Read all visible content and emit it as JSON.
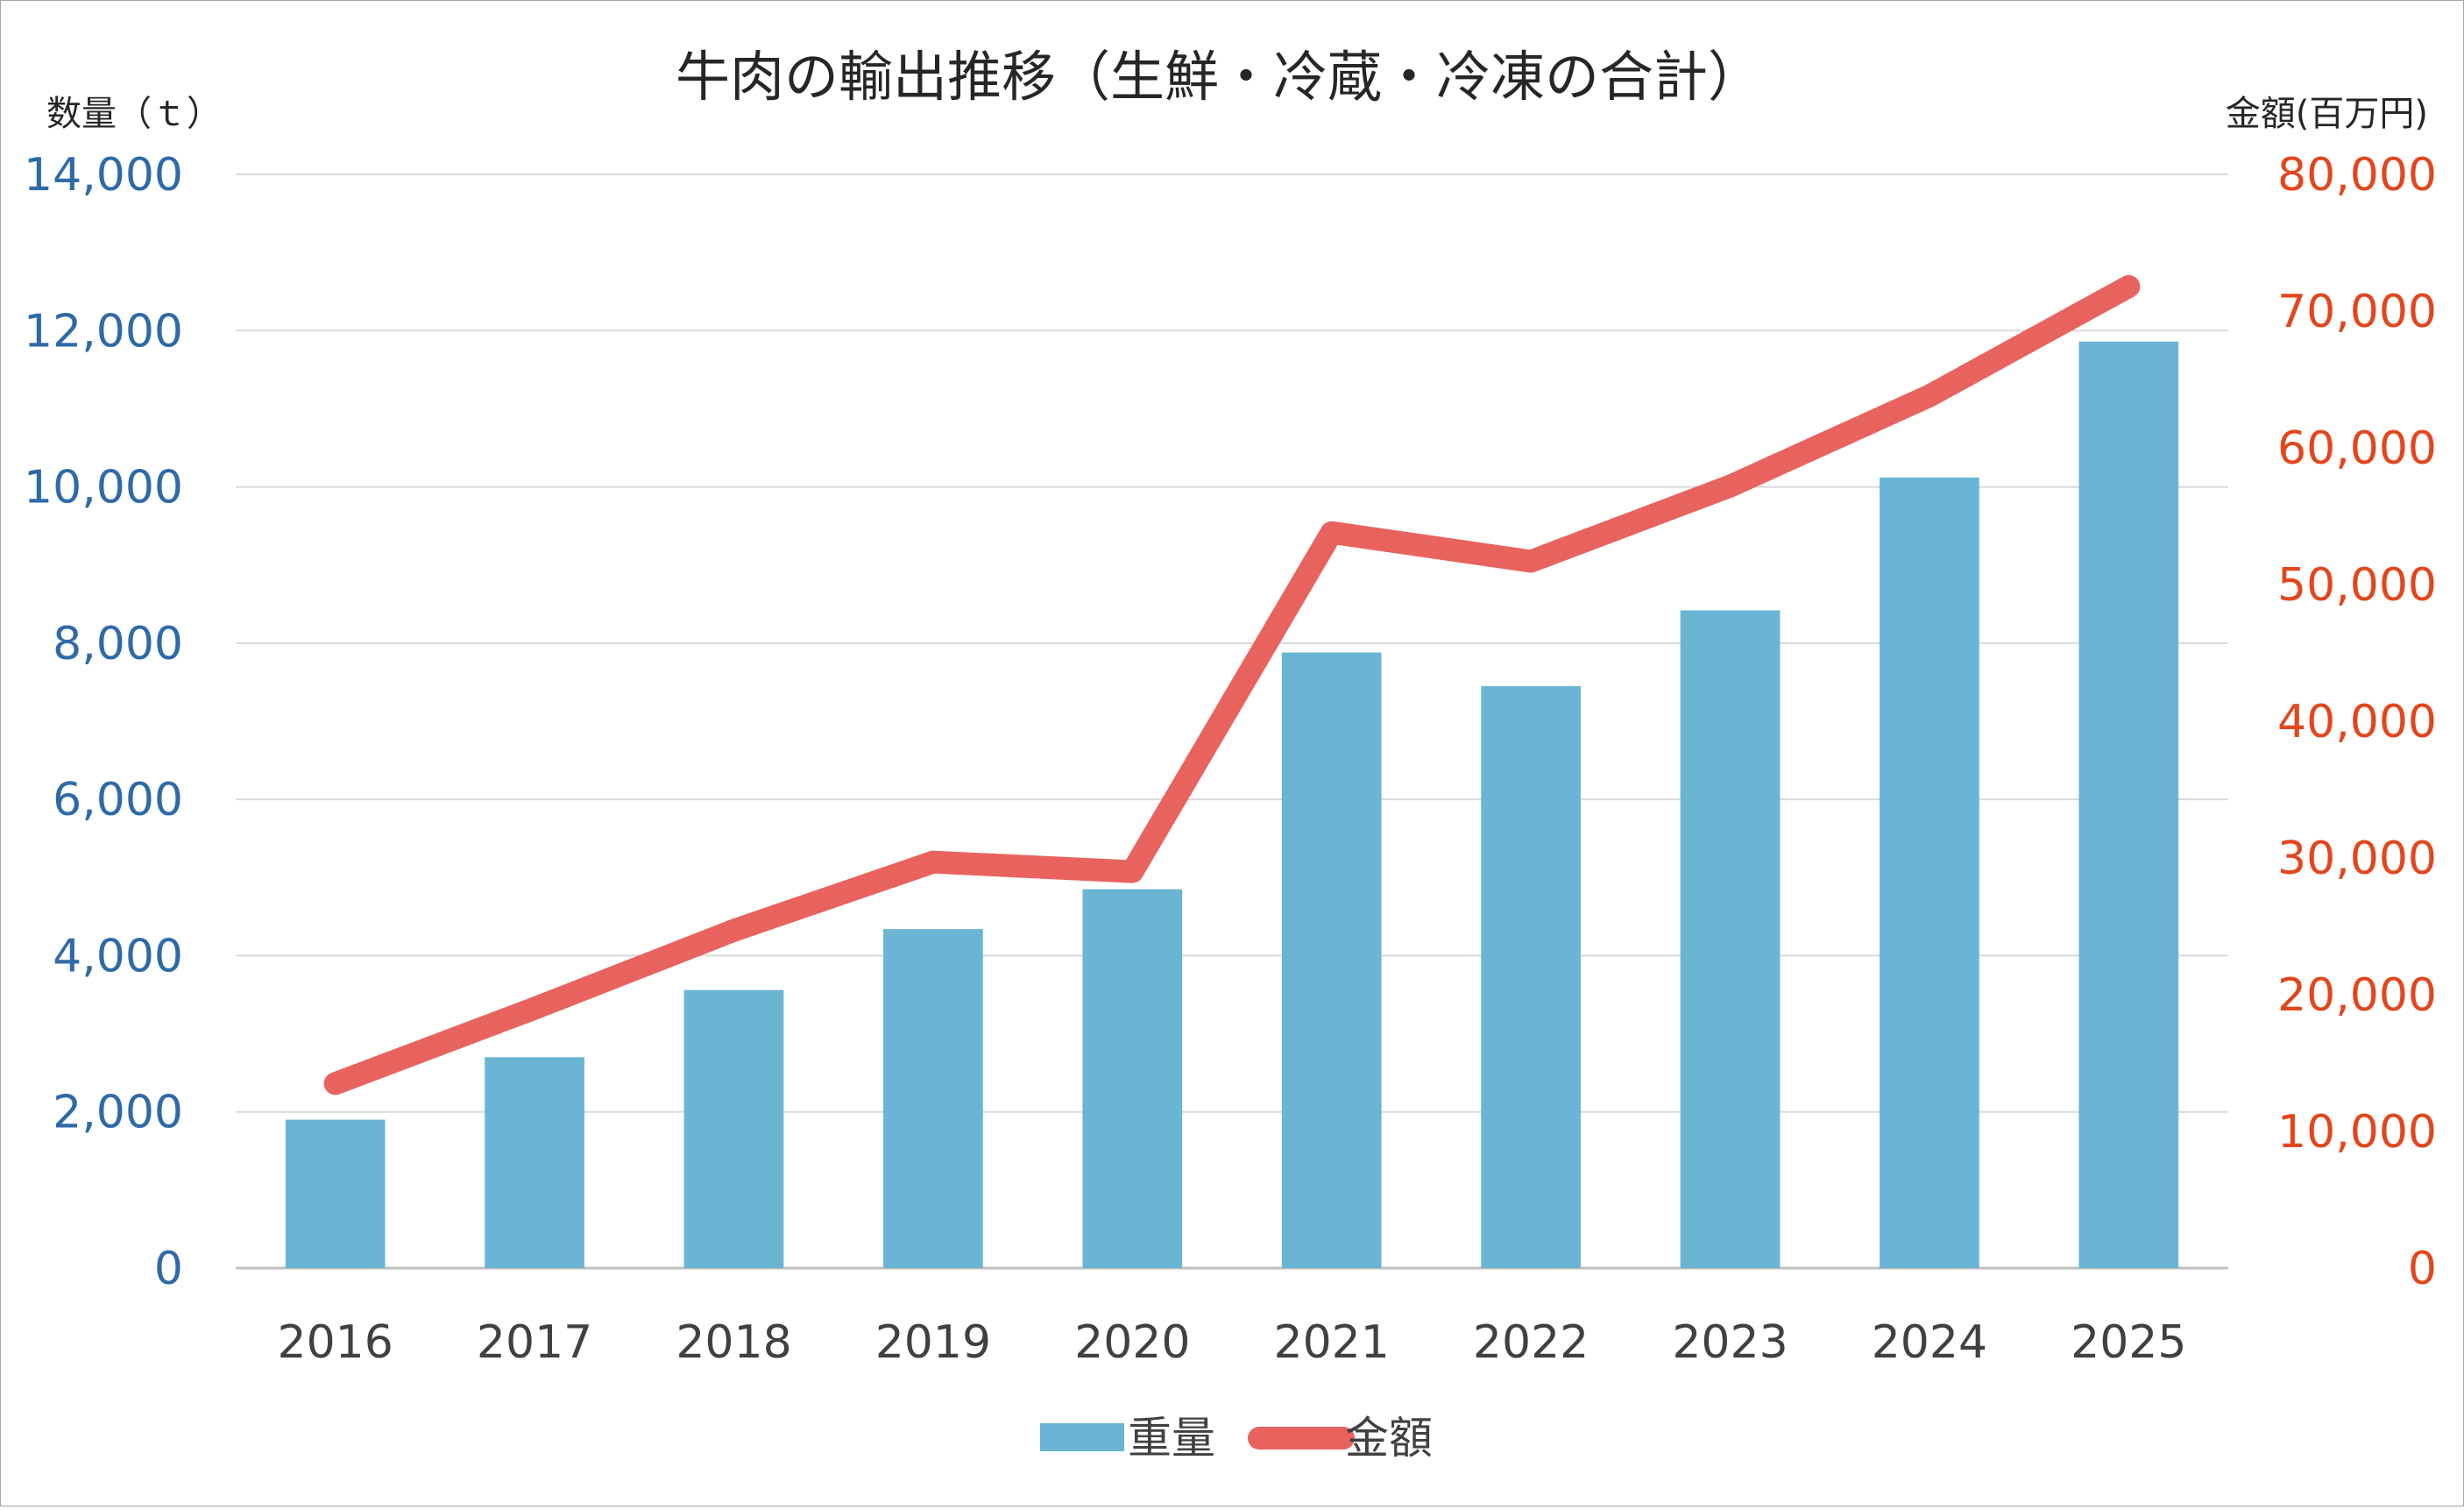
{
  "chart_data": {
    "type": "bar",
    "title": "牛肉の輸出推移（生鮮・冷蔵・冷凍の合計）",
    "categories": [
      "2016",
      "2017",
      "2018",
      "2019",
      "2020",
      "2021",
      "2022",
      "2023",
      "2024",
      "2025"
    ],
    "y_left": {
      "label": "数量（ｔ）",
      "ticks": [
        "0",
        "2,000",
        "4,000",
        "6,000",
        "8,000",
        "10,000",
        "12,000",
        "14,000"
      ],
      "ylim": [
        0,
        14000
      ],
      "color": "#2e6aa8"
    },
    "y_right": {
      "label": "金額(百万円)",
      "ticks": [
        "0",
        "10,000",
        "20,000",
        "30,000",
        "40,000",
        "50,000",
        "60,000",
        "70,000",
        "80,000"
      ],
      "ylim": [
        0,
        80000
      ],
      "color": "#e2461c"
    },
    "series": [
      {
        "name": "重量",
        "type": "bar",
        "axis": "left",
        "color": "#6ab4d4",
        "values": [
          1900,
          2700,
          3560,
          4340,
          4850,
          7880,
          7450,
          8420,
          10120,
          11860
        ]
      },
      {
        "name": "金額",
        "type": "line",
        "axis": "right",
        "color": "#e8625e",
        "values": [
          13500,
          19000,
          24700,
          29700,
          29000,
          53800,
          51700,
          57200,
          63800,
          71800
        ]
      }
    ],
    "grid": true,
    "legend": "bottom"
  }
}
